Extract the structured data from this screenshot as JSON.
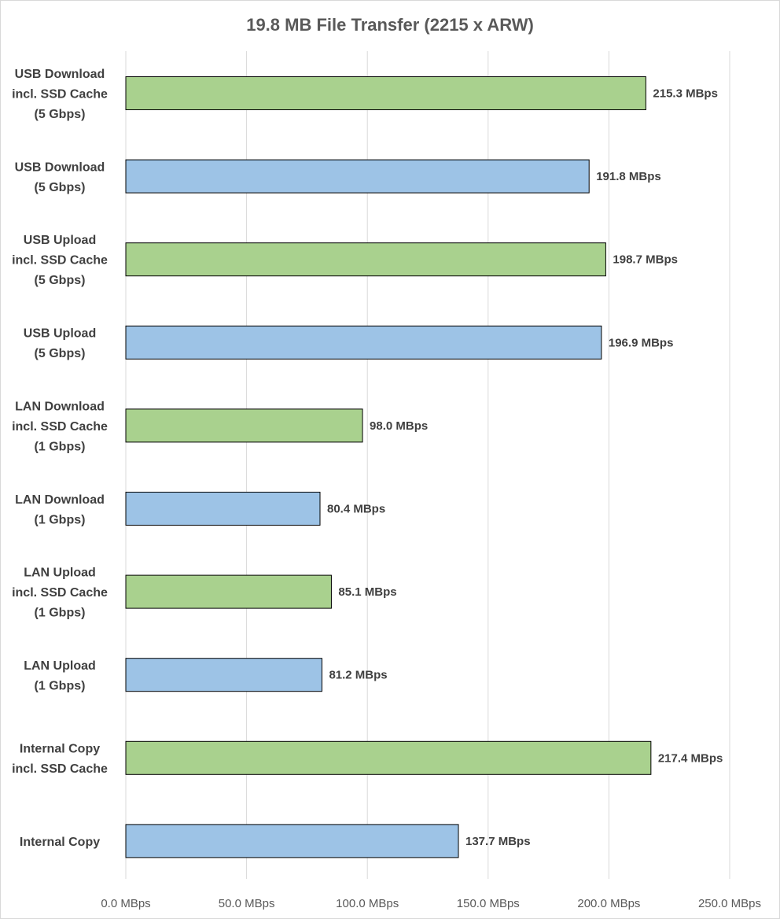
{
  "chart_data": {
    "type": "bar",
    "orientation": "horizontal",
    "title": "19.8 MB File Transfer (2215 x ARW)",
    "xlabel": "",
    "ylabel": "",
    "xlim": [
      0,
      250
    ],
    "ticks": [
      0,
      50,
      100,
      150,
      200,
      250
    ],
    "tick_labels": [
      "0.0 MBps",
      "50.0 MBps",
      "100.0 MBps",
      "150.0 MBps",
      "200.0 MBps",
      "250.0 MBps"
    ],
    "grid": true,
    "categories": [
      [
        "USB Download",
        "incl. SSD Cache",
        "(5 Gbps)"
      ],
      [
        "USB Download",
        "(5 Gbps)"
      ],
      [
        "USB Upload",
        "incl. SSD Cache",
        "(5 Gbps)"
      ],
      [
        "USB Upload",
        "(5 Gbps)"
      ],
      [
        "LAN Download",
        "incl. SSD Cache",
        "(1 Gbps)"
      ],
      [
        "LAN Download",
        "(1 Gbps)"
      ],
      [
        "LAN Upload",
        "incl. SSD Cache",
        "(1 Gbps)"
      ],
      [
        "LAN Upload",
        "(1 Gbps)"
      ],
      [
        "Internal Copy",
        "incl. SSD Cache"
      ],
      [
        "Internal Copy"
      ]
    ],
    "values": [
      215.3,
      191.8,
      198.7,
      196.9,
      98.0,
      80.4,
      85.1,
      81.2,
      217.4,
      137.7
    ],
    "value_labels": [
      "215.3 MBps",
      "191.8 MBps",
      "198.7 MBps",
      "196.9 MBps",
      "98.0 MBps",
      "80.4 MBps",
      "85.1 MBps",
      "81.2 MBps",
      "217.4 MBps",
      "137.7 MBps"
    ],
    "bar_colors": [
      "#a9d18e",
      "#9dc3e6",
      "#a9d18e",
      "#9dc3e6",
      "#a9d18e",
      "#9dc3e6",
      "#a9d18e",
      "#9dc3e6",
      "#a9d18e",
      "#9dc3e6"
    ],
    "bar_outline_color": "#000000"
  }
}
